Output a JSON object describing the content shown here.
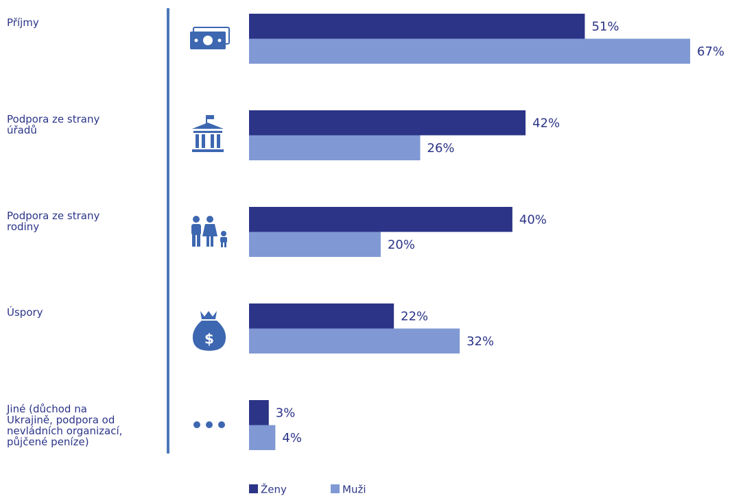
{
  "chart_data": {
    "type": "barh",
    "categories": [
      "Příjmy",
      "Podpora ze strany\núřadů",
      "Podpora ze strany\nrodiny",
      "Úspory",
      "Jiné (důchod na\nUkrajině, podpora od\nnevládních organizací,\npůjčené peníze)"
    ],
    "series": [
      {
        "name": "Ženy",
        "color": "#2b3487",
        "values": [
          51,
          42,
          40,
          22,
          3
        ],
        "value_labels": [
          "51%",
          "42%",
          "40%",
          "22%",
          "3%"
        ]
      },
      {
        "name": "Muži",
        "color": "#8099d4",
        "values": [
          67,
          26,
          20,
          32,
          4
        ],
        "value_labels": [
          "67%",
          "26%",
          "20%",
          "32%",
          "4%"
        ]
      }
    ],
    "legend": "bottom"
  }
}
